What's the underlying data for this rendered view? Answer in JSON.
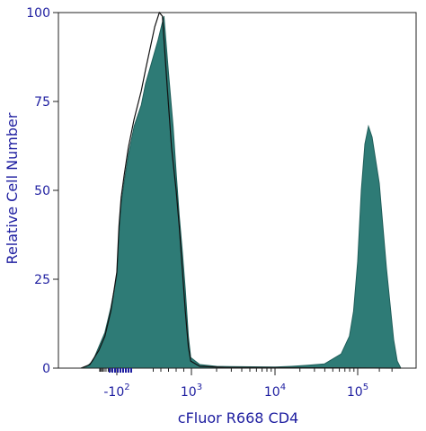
{
  "chart_data": {
    "type": "area",
    "title": "",
    "xlabel": "cFluor R668 CD4",
    "ylabel": "Relative Cell Number",
    "x_scale": "biexponential",
    "x_tick_labels": [
      {
        "base": "-10",
        "exp": "2"
      },
      {
        "base": "10",
        "exp": "3"
      },
      {
        "base": "10",
        "exp": "4"
      },
      {
        "base": "10",
        "exp": "5"
      }
    ],
    "y_ticks": [
      0,
      25,
      50,
      75,
      100
    ],
    "ylim": [
      0,
      100
    ],
    "grid": false,
    "colors": {
      "fill": "#2e7b76",
      "fill_stroke": "#1f5e5a",
      "outline": "#111111",
      "axis_text": "#1e1ea0",
      "frame": "#222222"
    },
    "series": [
      {
        "kind": "filled",
        "points": [
          [
            "-10^2.6",
            0
          ],
          [
            "-10^2.5",
            0.5
          ],
          [
            "-10^2.4",
            2
          ],
          [
            "-10^2.3",
            6
          ],
          [
            "-10^2.2",
            10
          ],
          [
            "-10^2.1",
            17
          ],
          [
            "-10^2.0",
            26
          ],
          [
            "-10^1.85",
            38
          ],
          [
            "-10^1.7",
            46
          ],
          [
            "-10^1.5",
            52
          ],
          [
            "-10^1.2",
            60
          ],
          [
            "-10^0.8",
            68
          ],
          [
            "-10^0.3",
            74
          ],
          [
            "0",
            80
          ],
          [
            "10^0.8",
            92
          ],
          [
            "10^1.2",
            99
          ],
          [
            "10^1.5",
            83
          ],
          [
            "10^1.8",
            68
          ],
          [
            "10^2.0",
            55
          ],
          [
            "10^2.2",
            43
          ],
          [
            "10^2.4",
            33
          ],
          [
            "10^2.6",
            22
          ],
          [
            "10^2.8",
            9
          ],
          [
            "10^2.95",
            3
          ],
          [
            "10^3.1",
            1
          ],
          [
            "10^3.3",
            0.5
          ],
          [
            "10^3.6",
            0.4
          ],
          [
            "10^4.0",
            0.3
          ],
          [
            "10^4.2",
            0.5
          ],
          [
            "10^4.4",
            0.8
          ],
          [
            "10^4.6",
            1.2
          ],
          [
            "10^4.8",
            4
          ],
          [
            "10^4.9",
            9
          ],
          [
            "10^4.95",
            16
          ],
          [
            "10^5.0",
            30
          ],
          [
            "10^5.05",
            50
          ],
          [
            "10^5.1",
            63
          ],
          [
            "10^5.15",
            68
          ],
          [
            "10^5.2",
            65
          ],
          [
            "10^5.3",
            52
          ],
          [
            "10^5.4",
            28
          ],
          [
            "10^5.5",
            8
          ],
          [
            "10^5.55",
            2
          ],
          [
            "10^5.6",
            0
          ]
        ]
      },
      {
        "kind": "outline",
        "points": [
          [
            "-10^2.6",
            0
          ],
          [
            "-10^2.45",
            1
          ],
          [
            "-10^2.3",
            5
          ],
          [
            "-10^2.2",
            9
          ],
          [
            "-10^2.1",
            16
          ],
          [
            "-10^2.0",
            27
          ],
          [
            "-10^1.85",
            40
          ],
          [
            "-10^1.7",
            48
          ],
          [
            "-10^1.5",
            54
          ],
          [
            "-10^1.2",
            62
          ],
          [
            "-10^0.8",
            70
          ],
          [
            "-10^0.3",
            78
          ],
          [
            "0",
            84
          ],
          [
            "10^0.6",
            96
          ],
          [
            "10^0.9",
            100
          ],
          [
            "10^1.1",
            99
          ],
          [
            "10^1.4",
            80
          ],
          [
            "10^1.7",
            62
          ],
          [
            "10^2.0",
            50
          ],
          [
            "10^2.2",
            40
          ],
          [
            "10^2.4",
            28
          ],
          [
            "10^2.6",
            16
          ],
          [
            "10^2.8",
            6
          ],
          [
            "10^2.95",
            2
          ],
          [
            "10^3.1",
            0.5
          ],
          [
            "10^3.4",
            0.2
          ],
          [
            "10^5.6",
            0
          ]
        ]
      }
    ]
  }
}
